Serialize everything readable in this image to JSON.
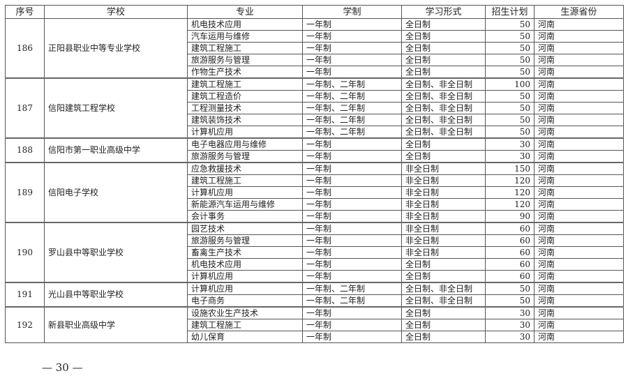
{
  "headers": [
    "序号",
    "学校",
    "专业",
    "学制",
    "学习形式",
    "招生计划",
    "生源省份"
  ],
  "groups": [
    {
      "id": "186",
      "school": "正阳县职业中等专业学校",
      "rows": [
        [
          "机电技术应用",
          "一年制",
          "全日制",
          "50",
          "河南"
        ],
        [
          "汽车运用与维修",
          "一年制",
          "全日制",
          "50",
          "河南"
        ],
        [
          "建筑工程施工",
          "一年制",
          "全日制",
          "50",
          "河南"
        ],
        [
          "旅游服务与管理",
          "一年制",
          "全日制",
          "50",
          "河南"
        ],
        [
          "作物生产技术",
          "一年制",
          "全日制",
          "50",
          "河南"
        ]
      ]
    },
    {
      "id": "187",
      "school": "信阳建筑工程学校",
      "rows": [
        [
          "建筑工程施工",
          "一年制、二年制",
          "全日制、非全日制",
          "100",
          "河南"
        ],
        [
          "建筑工程造价",
          "一年制、二年制",
          "全日制、非全日制",
          "50",
          "河南"
        ],
        [
          "工程测量技术",
          "一年制、二年制",
          "全日制、非全日制",
          "50",
          "河南"
        ],
        [
          "建筑装饰技术",
          "一年制、二年制",
          "全日制、非全日制",
          "50",
          "河南"
        ],
        [
          "计算机应用",
          "一年制、二年制",
          "全日制、非全日制",
          "50",
          "河南"
        ]
      ]
    },
    {
      "id": "188",
      "school": "信阳市第一职业高级中学",
      "rows": [
        [
          "电子电器应用与维修",
          "一年制",
          "全日制",
          "30",
          "河南"
        ],
        [
          "旅游服务与管理",
          "一年制",
          "全日制",
          "30",
          "河南"
        ]
      ]
    },
    {
      "id": "189",
      "school": "信阳电子学校",
      "rows": [
        [
          "应急救援技术",
          "一年制",
          "非全日制",
          "150",
          "河南"
        ],
        [
          "建筑工程施工",
          "一年制",
          "非全日制",
          "120",
          "河南"
        ],
        [
          "计算机应用",
          "一年制",
          "非全日制",
          "120",
          "河南"
        ],
        [
          "新能源汽车运用与维修",
          "一年制",
          "非全日制",
          "120",
          "河南"
        ],
        [
          "会计事务",
          "一年制",
          "非全日制",
          "90",
          "河南"
        ]
      ]
    },
    {
      "id": "190",
      "school": "罗山县中等职业学校",
      "rows": [
        [
          "园艺技术",
          "一年制",
          "非全日制",
          "60",
          "河南"
        ],
        [
          "旅游服务与管理",
          "一年制",
          "非全日制",
          "60",
          "河南"
        ],
        [
          "畜禽生产技术",
          "一年制",
          "非全日制",
          "60",
          "河南"
        ],
        [
          "机电技术应用",
          "一年制",
          "全日制",
          "60",
          "河南"
        ],
        [
          "计算机应用",
          "一年制",
          "全日制",
          "60",
          "河南"
        ]
      ]
    },
    {
      "id": "191",
      "school": "光山县中等职业学校",
      "rows": [
        [
          "计算机应用",
          "一年制、二年制",
          "全日制、非全日制",
          "50",
          "河南"
        ],
        [
          "电子商务",
          "一年制、二年制",
          "全日制、非全日制",
          "50",
          "河南"
        ]
      ]
    },
    {
      "id": "192",
      "school": "新县职业高级中学",
      "rows": [
        [
          "设施农业生产技术",
          "一年制",
          "全日制",
          "30",
          "河南"
        ],
        [
          "建筑工程施工",
          "一年制",
          "全日制",
          "30",
          "河南"
        ],
        [
          "幼儿保育",
          "一年制",
          "全日制",
          "30",
          "河南"
        ]
      ]
    }
  ],
  "page_number": "— 30 —"
}
